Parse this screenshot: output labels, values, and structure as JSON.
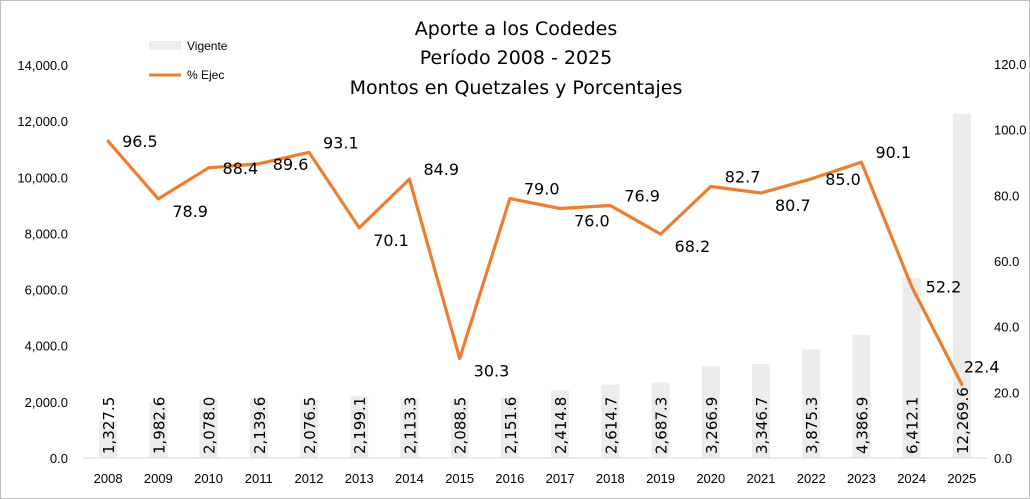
{
  "chart_data": {
    "type": "bar",
    "title": [
      "Aporte a los Codedes",
      "Período 2008 - 2025",
      "Montos en Quetzales y Porcentajes"
    ],
    "categories": [
      "2008",
      "2009",
      "2010",
      "2011",
      "2012",
      "2013",
      "2014",
      "2015",
      "2016",
      "2017",
      "2018",
      "2019",
      "2020",
      "2021",
      "2022",
      "2023",
      "2024",
      "2025"
    ],
    "series": [
      {
        "name": "Vigente",
        "type": "bar",
        "axis": "left",
        "color": "#ececec",
        "values": [
          1327.5,
          1982.6,
          2078.0,
          2139.6,
          2076.5,
          2199.1,
          2113.3,
          2088.5,
          2151.6,
          2414.8,
          2614.7,
          2687.3,
          3266.9,
          3346.7,
          3875.3,
          4386.9,
          6412.1,
          12269.6
        ],
        "labels": [
          "1,327.5",
          "1,982.6",
          "2,078.0",
          "2,139.6",
          "2,076.5",
          "2,199.1",
          "2,113.3",
          "2,088.5",
          "2,151.6",
          "2,414.8",
          "2,614.7",
          "2,687.3",
          "3,266.9",
          "3,346.7",
          "3,875.3",
          "4,386.9",
          "6,412.1",
          "12,269.6"
        ]
      },
      {
        "name": "% Ejec",
        "type": "line",
        "axis": "right",
        "color": "#ed7d31",
        "values": [
          96.5,
          78.9,
          88.4,
          89.6,
          93.1,
          70.1,
          84.9,
          30.3,
          79.0,
          76.0,
          76.9,
          68.2,
          82.7,
          80.7,
          85.0,
          90.1,
          52.2,
          22.4
        ],
        "labels": [
          "96.5",
          "78.9",
          "88.4",
          "89.6",
          "93.1",
          "70.1",
          "84.9",
          "30.3",
          "79.0",
          "76.0",
          "76.9",
          "68.2",
          "82.7",
          "80.7",
          "85.0",
          "90.1",
          "52.2",
          "22.4"
        ]
      }
    ],
    "y_left": {
      "range": [
        0,
        14000
      ],
      "ticks": [
        "0.0",
        "2,000.0",
        "4,000.0",
        "6,000.0",
        "8,000.0",
        "10,000.0",
        "12,000.0",
        "14,000.0"
      ]
    },
    "y_right": {
      "range": [
        0,
        120
      ],
      "ticks": [
        "0.0",
        "20.0",
        "40.0",
        "60.0",
        "80.0",
        "100.0",
        "120.0"
      ]
    },
    "grid": false,
    "legend": "top-left"
  }
}
